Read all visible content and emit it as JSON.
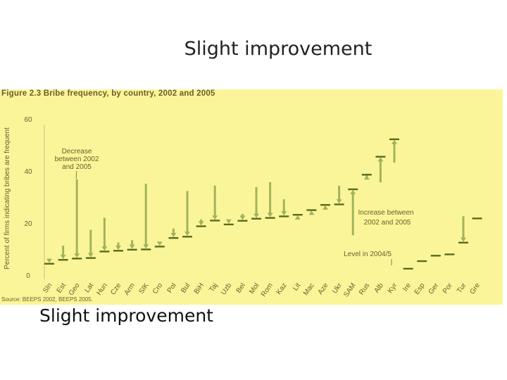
{
  "slide": {
    "title": "Slight improvement",
    "caption": "Slight improvement"
  },
  "colors": {
    "background": "#fbf59a",
    "mark": "#a3b35a",
    "bar_2005": "#5a6a1e",
    "text": "#6a5f2a"
  },
  "chart_data": {
    "type": "bar",
    "figure_title": "Figure 2.3  Bribe frequency, by country, 2002 and 2005",
    "ylabel": "Percent of firms indicating bribes are frequent",
    "ylim": [
      0,
      60
    ],
    "yticks": [
      0,
      20,
      40,
      60
    ],
    "source": "Source: BEEPS 2002, BEEPS 2005.",
    "categories": [
      "Sln",
      "Est",
      "Geo",
      "Lat",
      "Hun",
      "Cze",
      "Arm",
      "SIK",
      "Cro",
      "Pol",
      "Bul",
      "BiH",
      "Taj",
      "Uzb",
      "Bel",
      "Mol",
      "Rom",
      "Kaz",
      "Lit",
      "Mac",
      "Aze",
      "Ukr",
      "SAM",
      "Rus",
      "Alb",
      "Kyr",
      "Ire",
      "Esp",
      "Ger",
      "Por",
      "Tur",
      "Gre"
    ],
    "series": [
      {
        "name": "2002",
        "values": [
          6.6,
          11.6,
          37.1,
          17.7,
          22.3,
          12.8,
          13.7,
          35.4,
          12.3,
          18.2,
          32.6,
          21.7,
          34.7,
          21.0,
          23.8,
          34.1,
          36.0,
          29.4,
          21.8,
          23.6,
          26.7,
          34.6,
          15.6,
          38.5,
          35.9,
          43.5,
          null,
          null,
          null,
          null,
          22.9,
          null
        ]
      },
      {
        "name": "2005",
        "values": [
          4.7,
          6.2,
          6.7,
          6.9,
          9.4,
          9.7,
          10.1,
          10.2,
          11.3,
          14.6,
          15.1,
          19.1,
          21.3,
          19.8,
          21.2,
          22.0,
          22.3,
          22.9,
          23.5,
          25.3,
          27.3,
          27.5,
          33.3,
          38.9,
          45.8,
          52.5,
          2.8,
          5.7,
          7.8,
          8.3,
          12.8,
          22.1
        ]
      }
    ],
    "annotations": [
      {
        "text": "Decrease",
        "text2": "between 2002",
        "text3": "and 2005"
      },
      {
        "text": "Increase between",
        "text2": "2002 and 2005"
      },
      {
        "text": "Level in 2004/5"
      }
    ],
    "grid": false,
    "legend": "none"
  }
}
